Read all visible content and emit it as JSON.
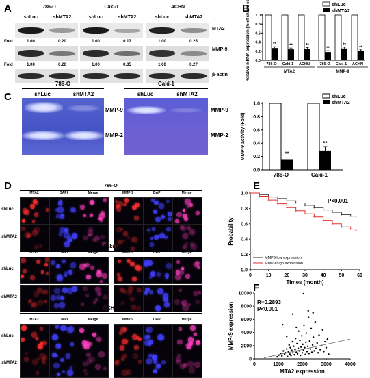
{
  "panels": {
    "A": {
      "label": "A",
      "cell_lines": [
        "786-O",
        "Caki-1",
        "ACHN"
      ],
      "lanes": [
        "shLuc",
        "shMTA2",
        "shLuc",
        "shMTA2",
        "shLuc",
        "shMTA2"
      ],
      "row_labels": [
        "MTA2",
        "MMP-9",
        "β-actin"
      ],
      "fold_label": "Fold",
      "mta2_fold": [
        "1.00",
        "0.20",
        "1.00",
        "0.17",
        "1.00",
        "0.25"
      ],
      "mmp9_fold": [
        "1.00",
        "0.26",
        "1.00",
        "0.35",
        "1.00",
        "0.27"
      ]
    },
    "B": {
      "label": "B",
      "ylabel": "Relative mRNA expression (% of shLuc cells)",
      "legend": [
        "shLuc",
        "shMTA2"
      ],
      "star": "**"
    },
    "C": {
      "label": "C",
      "gels": [
        "786-O",
        "Caki-1"
      ],
      "lanes": [
        "shLuc",
        "shMTA2"
      ],
      "bands": [
        "MMP-9",
        "MMP-2"
      ],
      "legend": [
        "shLuc",
        "shMTA2"
      ],
      "star": "**"
    },
    "D": {
      "label": "D",
      "sections": [
        "786-O",
        "Caki-1",
        "ACHN"
      ],
      "columns": [
        "MTA2",
        "DAPI",
        "Merge",
        "MMP-9",
        "DAPI",
        "Merge"
      ],
      "rows": [
        "shLuc",
        "shMTA2"
      ]
    },
    "E": {
      "label": "E",
      "pvalue": "P<0.001",
      "legend": [
        "MMP9 low expression",
        "MMP9 high expression"
      ]
    },
    "F": {
      "label": "F",
      "r_text": "R=0.2893",
      "p_text": "P<0.001"
    }
  },
  "chart_data": [
    {
      "type": "bar",
      "panel": "B",
      "groups": [
        "MTA2",
        "MMP-9"
      ],
      "categories": [
        "786-O",
        "Caki-1",
        "ACHN",
        "786-O",
        "Caki-1",
        "ACHN"
      ],
      "series": [
        {
          "name": "shLuc",
          "values": [
            1.0,
            1.0,
            1.0,
            1.0,
            1.0,
            1.0
          ]
        },
        {
          "name": "shMTA2",
          "values": [
            0.27,
            0.24,
            0.25,
            0.18,
            0.26,
            0.21
          ]
        }
      ],
      "errors": [
        0.03,
        0.03,
        0.03,
        0.03,
        0.03,
        0.02
      ],
      "ylabel": "Relative mRNA expression (% of shLuc cells)",
      "ylim": [
        0,
        1.0
      ],
      "yticks": [
        "0.0",
        "0.2",
        "0.4",
        "0.6",
        "0.8",
        "1.0"
      ],
      "legend": "top-right"
    },
    {
      "type": "bar",
      "panel": "C",
      "categories": [
        "786-O",
        "Caki-1"
      ],
      "series": [
        {
          "name": "shLuc",
          "values": [
            1.0,
            1.0
          ]
        },
        {
          "name": "shMTA2",
          "values": [
            0.16,
            0.29
          ]
        }
      ],
      "errors": [
        0.03,
        0.06
      ],
      "ylabel": "MMP-9 activity (Fold)",
      "ylim": [
        0,
        1.0
      ],
      "yticks": [
        "0.0",
        "0.2",
        "0.4",
        "0.6",
        "0.8",
        "1.0"
      ],
      "legend": "top-right"
    },
    {
      "type": "line",
      "panel": "E",
      "xlabel": "Times (month)",
      "ylabel": "Probability",
      "xlim": [
        0,
        60
      ],
      "ylim": [
        0.0,
        1.0
      ],
      "xticks": [
        0,
        10,
        20,
        30,
        40,
        50,
        60
      ],
      "yticks": [
        "0.0",
        "0.2",
        "0.4",
        "0.6",
        "0.8",
        "1.0"
      ],
      "series": [
        {
          "name": "MMP9 low expression",
          "color": "#333333",
          "x": [
            0,
            5,
            10,
            15,
            20,
            25,
            30,
            35,
            40,
            45,
            50,
            55,
            58
          ],
          "y": [
            1.0,
            0.98,
            0.95,
            0.93,
            0.9,
            0.87,
            0.84,
            0.81,
            0.78,
            0.75,
            0.72,
            0.7,
            0.68
          ]
        },
        {
          "name": "MMP9 high expression",
          "color": "#e03030",
          "x": [
            0,
            5,
            10,
            15,
            20,
            25,
            30,
            35,
            40,
            45,
            50,
            55,
            58
          ],
          "y": [
            1.0,
            0.96,
            0.91,
            0.86,
            0.81,
            0.77,
            0.73,
            0.69,
            0.64,
            0.6,
            0.56,
            0.53,
            0.52
          ]
        }
      ],
      "legend": "bottom-left"
    },
    {
      "type": "scatter",
      "panel": "F",
      "xlabel": "MTA2 expression",
      "ylabel": "MMP-9 expression",
      "xlim": [
        0,
        4000
      ],
      "ylim": [
        0,
        10000
      ],
      "xticks": [
        0,
        1000,
        2000,
        3000,
        4000
      ],
      "yticks": [
        0,
        2000,
        4000,
        6000,
        8000,
        10000
      ],
      "fit_line": {
        "x": [
          400,
          4000
        ],
        "y": [
          150,
          3000
        ]
      },
      "points": [
        [
          950,
          300
        ],
        [
          1020,
          550
        ],
        [
          1100,
          800
        ],
        [
          1150,
          420
        ],
        [
          1210,
          1200
        ],
        [
          1260,
          650
        ],
        [
          1300,
          900
        ],
        [
          1350,
          1500
        ],
        [
          1380,
          350
        ],
        [
          1420,
          1100
        ],
        [
          1450,
          2100
        ],
        [
          1480,
          700
        ],
        [
          1500,
          1700
        ],
        [
          1530,
          480
        ],
        [
          1560,
          1300
        ],
        [
          1590,
          2600
        ],
        [
          1610,
          900
        ],
        [
          1640,
          1900
        ],
        [
          1670,
          600
        ],
        [
          1700,
          1400
        ],
        [
          1720,
          3100
        ],
        [
          1750,
          1000
        ],
        [
          1780,
          2300
        ],
        [
          1800,
          750
        ],
        [
          1830,
          1600
        ],
        [
          1850,
          4200
        ],
        [
          1880,
          1200
        ],
        [
          1900,
          2800
        ],
        [
          1920,
          500
        ],
        [
          1950,
          1800
        ],
        [
          1980,
          3500
        ],
        [
          2000,
          900
        ],
        [
          2020,
          2200
        ],
        [
          2050,
          1300
        ],
        [
          2070,
          5100
        ],
        [
          2100,
          1700
        ],
        [
          2130,
          650
        ],
        [
          2150,
          2500
        ],
        [
          2170,
          3900
        ],
        [
          2200,
          1100
        ],
        [
          2230,
          1900
        ],
        [
          2260,
          6300
        ],
        [
          2280,
          800
        ],
        [
          2310,
          2700
        ],
        [
          2340,
          1500
        ],
        [
          2370,
          4600
        ],
        [
          2400,
          1000
        ],
        [
          2430,
          2100
        ],
        [
          2460,
          3300
        ],
        [
          2500,
          1200
        ],
        [
          2540,
          5600
        ],
        [
          2580,
          1600
        ],
        [
          2620,
          2400
        ],
        [
          2660,
          900
        ],
        [
          2700,
          3600
        ],
        [
          2750,
          1400
        ],
        [
          2800,
          2000
        ],
        [
          2850,
          4400
        ],
        [
          2900,
          1100
        ],
        [
          2950,
          2600
        ],
        [
          3000,
          1700
        ],
        [
          3050,
          3000
        ],
        [
          3100,
          700
        ],
        [
          1180,
          5200
        ],
        [
          1600,
          6800
        ],
        [
          2050,
          9900
        ],
        [
          2250,
          7300
        ],
        [
          1350,
          3400
        ],
        [
          2450,
          7000
        ],
        [
          1750,
          4800
        ]
      ]
    }
  ]
}
